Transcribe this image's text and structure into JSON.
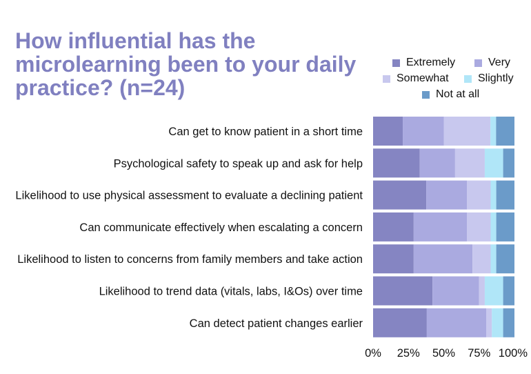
{
  "chart_data": {
    "type": "bar",
    "orientation": "horizontal",
    "stacked": "percent",
    "title": "How influential has the microlearning been to your daily practice? (n=24)",
    "title_lines": [
      "How influential has the",
      "microlearning been to your daily",
      "practice? (n=24)"
    ],
    "categories": [
      "Can get to know patient in a short time",
      "Psychological safety to speak up and ask for help",
      "Likelihood to use physical assessment to evaluate a declining patient",
      "Can communicate effectively when escalating a concern",
      "Likelihood to listen to concerns from family members and take action",
      "Likelihood to trend data (vitals, labs, I&Os) over time",
      "Can detect patient changes earlier"
    ],
    "series": [
      {
        "name": "Extremely",
        "color": "#8585c2",
        "values": [
          21,
          33,
          38,
          29,
          29,
          42,
          38
        ]
      },
      {
        "name": "Very",
        "color": "#aaaae0",
        "values": [
          29,
          25,
          29,
          38,
          42,
          33,
          42
        ]
      },
      {
        "name": "Somewhat",
        "color": "#c8c8ee",
        "values": [
          33,
          21,
          17,
          17,
          13,
          4,
          4
        ]
      },
      {
        "name": "Slightly",
        "color": "#b0e6f8",
        "values": [
          4,
          13,
          4,
          4,
          4,
          13,
          8
        ]
      },
      {
        "name": "Not at all",
        "color": "#6b9bc9",
        "values": [
          13,
          8,
          13,
          13,
          13,
          8,
          8
        ]
      }
    ],
    "xticks": [
      "0%",
      "25%",
      "50%",
      "75%",
      "100%"
    ],
    "xlim": [
      0,
      100
    ],
    "legend": "top-right",
    "grid": false
  }
}
